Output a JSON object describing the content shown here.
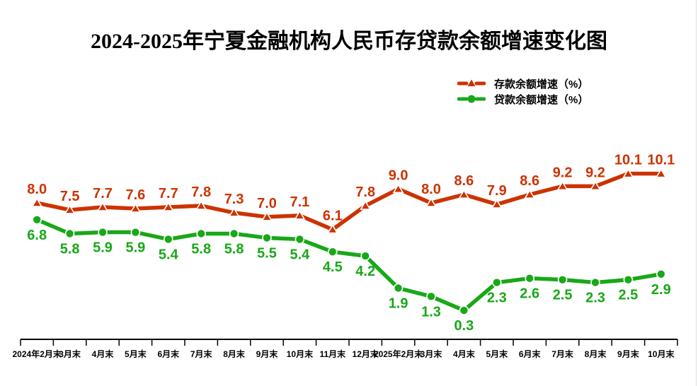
{
  "title": "2024-2025年宁夏金融机构人民币存贷款余额增速变化图",
  "chart_data": {
    "type": "line",
    "title": "2024-2025年宁夏金融机构人民币存贷款余额增速变化图",
    "categories": [
      "2024年2月末",
      "3月末",
      "4月末",
      "5月末",
      "6月末",
      "7月末",
      "8月末",
      "9月末",
      "10月末",
      "11月末",
      "12月末",
      "2025年2月末",
      "3月末",
      "4月末",
      "5月末",
      "6月末",
      "7月末",
      "8月末",
      "9月末",
      "10月末"
    ],
    "series": [
      {
        "name": "存款余额增速（%）",
        "marker": "triangle",
        "color": "#CC3300",
        "values": [
          8.0,
          7.5,
          7.7,
          7.6,
          7.7,
          7.8,
          7.3,
          7.0,
          7.1,
          6.1,
          7.8,
          9.0,
          8.0,
          8.6,
          7.9,
          8.6,
          9.2,
          9.2,
          10.1,
          10.1
        ]
      },
      {
        "name": "贷款余额增速（%）",
        "marker": "circle",
        "color": "#18A818",
        "values": [
          6.8,
          5.8,
          5.9,
          5.9,
          5.4,
          5.8,
          5.8,
          5.5,
          5.4,
          4.5,
          4.2,
          1.9,
          1.3,
          0.3,
          2.3,
          2.6,
          2.5,
          2.3,
          2.5,
          2.9
        ]
      }
    ],
    "data_labels": "every point, one decimal, colored as its series; deposit labels above points, loan labels below points",
    "legend_position": "top-right",
    "grid": "off",
    "y_axis": {
      "visible": false,
      "approx_range": [
        -2,
        12
      ]
    },
    "x_axis": {
      "line_color": "#000000",
      "ticks": "outside, at category boundaries",
      "labels_bold": true
    }
  },
  "decorations": {
    "title_color": "#000000",
    "axis_color": "#000000",
    "right_border_color": "#E0E0E0"
  }
}
